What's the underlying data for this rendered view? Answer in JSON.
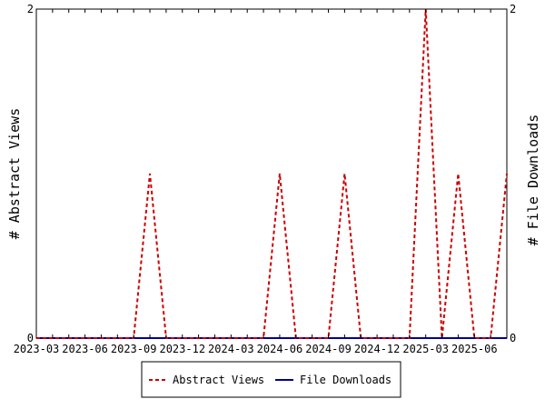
{
  "chart_data": {
    "type": "line",
    "title": "",
    "ylabel_left": "# Abstract Views",
    "ylabel_right": "# File Downloads",
    "x_tick_labels": [
      "2023-03",
      "2023-06",
      "2023-09",
      "2023-12",
      "2024-03",
      "2024-06",
      "2024-09",
      "2024-12",
      "2025-03",
      "2025-06"
    ],
    "x_range": [
      "2023-03",
      "2025-08"
    ],
    "ylim_left": [
      0,
      2
    ],
    "ylim_right": [
      0,
      2
    ],
    "y_ticks_left": [
      "0",
      "2"
    ],
    "y_ticks_right": [
      "0",
      "2"
    ],
    "grid": false,
    "legend_position": "bottom",
    "series": [
      {
        "name": "Abstract Views",
        "axis": "left",
        "color": "#cc0000",
        "style": "dashed",
        "x": [
          "2023-03",
          "2023-04",
          "2023-05",
          "2023-06",
          "2023-07",
          "2023-08",
          "2023-09",
          "2023-10",
          "2023-11",
          "2023-12",
          "2024-01",
          "2024-02",
          "2024-03",
          "2024-04",
          "2024-05",
          "2024-06",
          "2024-07",
          "2024-08",
          "2024-09",
          "2024-10",
          "2024-11",
          "2024-12",
          "2025-01",
          "2025-02",
          "2025-03",
          "2025-04",
          "2025-05",
          "2025-06",
          "2025-07",
          "2025-08"
        ],
        "values": [
          0,
          0,
          0,
          0,
          0,
          0,
          0,
          1,
          0,
          0,
          0,
          0,
          0,
          0,
          0,
          1,
          0,
          0,
          0,
          1,
          0,
          0,
          0,
          0,
          2,
          0,
          1,
          0,
          0,
          1
        ]
      },
      {
        "name": "File Downloads",
        "axis": "right",
        "color": "#000099",
        "style": "solid",
        "x": [
          "2023-03",
          "2025-08"
        ],
        "values": [
          0,
          0
        ]
      }
    ]
  }
}
